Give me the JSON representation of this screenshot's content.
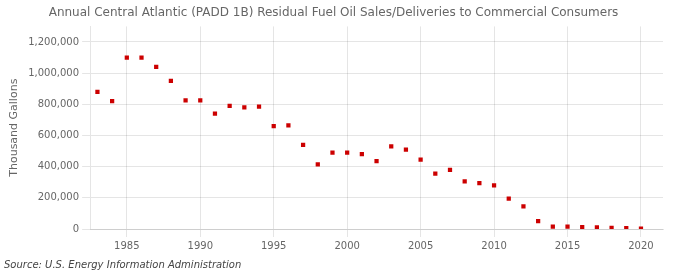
{
  "chart_data": {
    "type": "scatter",
    "title": "Annual Central Atlantic (PADD 1B) Residual Fuel Oil Sales/Deliveries to Commercial Consumers",
    "ylabel": "Thousand Gallons",
    "annotation": "Source: U.S. Energy Information Administration",
    "x": [
      1983,
      1984,
      1985,
      1986,
      1987,
      1988,
      1989,
      1990,
      1991,
      1992,
      1993,
      1994,
      1995,
      1996,
      1997,
      1998,
      1999,
      2000,
      2001,
      2002,
      2003,
      2004,
      2005,
      2006,
      2007,
      2008,
      2009,
      2010,
      2011,
      2012,
      2013,
      2014,
      2015,
      2016,
      2017,
      2018,
      2019,
      2020
    ],
    "values": [
      880000,
      820000,
      1100000,
      1100000,
      1040000,
      950000,
      825000,
      825000,
      740000,
      790000,
      780000,
      785000,
      660000,
      665000,
      540000,
      415000,
      490000,
      490000,
      480000,
      435000,
      530000,
      510000,
      445000,
      355000,
      380000,
      305000,
      295000,
      280000,
      195000,
      145000,
      50000,
      15000,
      15000,
      12000,
      10000,
      8000,
      5000,
      2000
    ],
    "color": "#cc0000",
    "marker": "square",
    "xlim": [
      1982.5,
      2021.5
    ],
    "xticks": [
      1985,
      1990,
      1995,
      2000,
      2005,
      2010,
      2015,
      2020
    ],
    "ylim": [
      0,
      1300000
    ],
    "yticks": [
      0,
      {
        "value": 200000,
        "label": "200,000"
      },
      {
        "value": 400000,
        "label": "400,000"
      },
      {
        "value": 600000,
        "label": "600,000"
      },
      {
        "value": 800000,
        "label": "800,000"
      },
      {
        "value": 1000000,
        "label": "1,000,000"
      },
      {
        "value": 1200000,
        "label": "1,200,000"
      }
    ],
    "grid": true
  }
}
